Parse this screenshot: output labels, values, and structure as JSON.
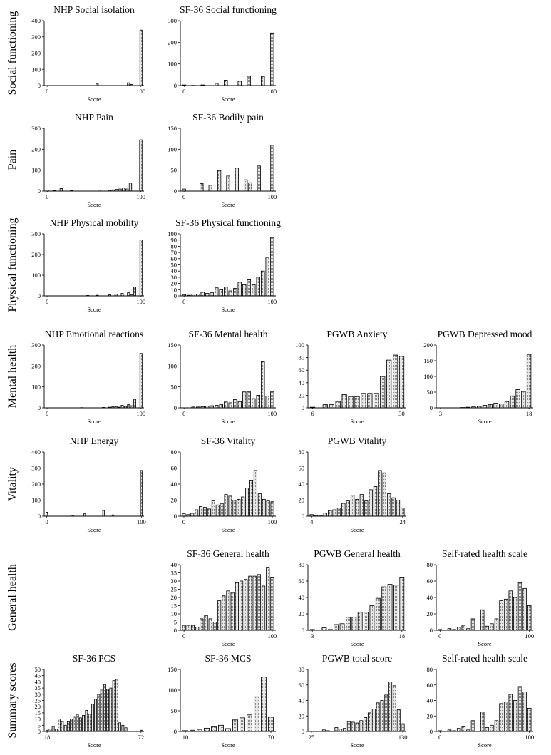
{
  "figure": {
    "row_labels": [
      "Social functioning",
      "Pain",
      "Physical functioning",
      "Mental health",
      "Vitality",
      "General health",
      "Summary scores"
    ]
  },
  "chart_data": [
    {
      "type": "bar",
      "row": 0,
      "col": 0,
      "title": "NHP Social isolation",
      "xlabel": "Score",
      "ylim": [
        0,
        400
      ],
      "yticks": [
        0,
        100,
        200,
        300,
        400
      ],
      "xlim": [
        0,
        100
      ],
      "xticks": [
        0,
        100
      ],
      "values": [
        0,
        0,
        0,
        0,
        0,
        0,
        0,
        0,
        0,
        0,
        0,
        0,
        0,
        0,
        0,
        0,
        10,
        0,
        0,
        0,
        0,
        0,
        0,
        0,
        0,
        0,
        17,
        7,
        0,
        0,
        342
      ]
    },
    {
      "type": "bar",
      "row": 0,
      "col": 1,
      "title": "SF-36 Social functioning",
      "xlabel": "Score",
      "ylim": [
        0,
        300
      ],
      "yticks": [
        0,
        100,
        200,
        300
      ],
      "xlim": [
        0,
        100
      ],
      "xticks": [
        0,
        100
      ],
      "values": [
        3,
        0,
        1,
        0,
        3,
        0,
        0,
        10,
        0,
        25,
        0,
        0,
        20,
        0,
        43,
        0,
        0,
        42,
        0,
        243
      ]
    },
    {
      "type": "bar",
      "row": 1,
      "col": 0,
      "title": "NHP Pain",
      "xlabel": "Score",
      "ylim": [
        0,
        300
      ],
      "yticks": [
        0,
        100,
        200,
        300
      ],
      "xlim": [
        0,
        100
      ],
      "xticks": [
        0,
        100
      ],
      "values": [
        5,
        0,
        3,
        0,
        12,
        0,
        0,
        2,
        0,
        0,
        0,
        0,
        0,
        0,
        0,
        5,
        0,
        0,
        4,
        6,
        8,
        10,
        15,
        10,
        38,
        0,
        0,
        245
      ]
    },
    {
      "type": "bar",
      "row": 1,
      "col": 1,
      "title": "SF-36 Bodily pain",
      "xlabel": "Score",
      "ylim": [
        0,
        150
      ],
      "yticks": [
        0,
        50,
        100,
        150
      ],
      "xlim": [
        0,
        100
      ],
      "xticks": [
        0,
        100
      ],
      "values": [
        5,
        0,
        0,
        0,
        18,
        0,
        14,
        0,
        49,
        0,
        36,
        0,
        55,
        0,
        27,
        20,
        0,
        60,
        0,
        0,
        110
      ]
    },
    {
      "type": "bar",
      "row": 2,
      "col": 0,
      "title": "NHP Physical mobility",
      "xlabel": "Score",
      "ylim": [
        0,
        300
      ],
      "yticks": [
        0,
        100,
        200,
        300
      ],
      "xlim": [
        0,
        100
      ],
      "xticks": [
        0,
        100
      ],
      "values": [
        0,
        0,
        0,
        0,
        0,
        0,
        0,
        0,
        0,
        0,
        0,
        0,
        0,
        2,
        0,
        0,
        3,
        0,
        0,
        0,
        5,
        0,
        8,
        0,
        12,
        0,
        15,
        6,
        42,
        0,
        270
      ]
    },
    {
      "type": "bar",
      "row": 2,
      "col": 1,
      "title": "SF-36 Physical functioning",
      "xlabel": "Score",
      "ylim": [
        0,
        100
      ],
      "yticks": [
        0,
        10,
        20,
        30,
        40,
        50,
        60,
        70,
        80,
        90,
        100
      ],
      "xlim": [
        0,
        100
      ],
      "xticks": [
        0,
        100
      ],
      "values": [
        2,
        1,
        3,
        3,
        6,
        4,
        5,
        13,
        10,
        14,
        8,
        12,
        22,
        18,
        26,
        18,
        30,
        40,
        62,
        94
      ]
    },
    {
      "type": "bar",
      "row": 3,
      "col": 0,
      "title": "NHP Emotional reactions",
      "xlabel": "Score",
      "ylim": [
        0,
        300
      ],
      "yticks": [
        0,
        100,
        200,
        300
      ],
      "xlim": [
        0,
        100
      ],
      "xticks": [
        0,
        100
      ],
      "values": [
        0,
        0,
        0,
        0,
        0,
        0,
        0,
        0,
        0,
        0,
        0,
        1,
        0,
        0,
        0,
        0,
        0,
        0,
        2,
        0,
        3,
        5,
        6,
        3,
        12,
        8,
        15,
        10,
        42,
        0,
        260
      ]
    },
    {
      "type": "bar",
      "row": 3,
      "col": 1,
      "title": "SF-36 Mental health",
      "xlabel": "Score",
      "ylim": [
        0,
        150
      ],
      "yticks": [
        0,
        50,
        100,
        150
      ],
      "xlim": [
        0,
        100
      ],
      "xticks": [
        0,
        100
      ],
      "values": [
        0,
        0,
        2,
        2,
        3,
        4,
        5,
        6,
        8,
        14,
        12,
        20,
        15,
        38,
        38,
        22,
        30,
        110,
        28,
        38
      ]
    },
    {
      "type": "bar",
      "row": 3,
      "col": 2,
      "title": "PGWB Anxiety",
      "xlabel": "Score",
      "ylim": [
        0,
        100
      ],
      "yticks": [
        0,
        20,
        40,
        60,
        80,
        100
      ],
      "xlim": [
        6,
        30
      ],
      "xticks": [
        6,
        30
      ],
      "values": [
        1,
        0,
        5,
        5,
        10,
        21,
        18,
        18,
        23,
        23,
        23,
        50,
        76,
        84,
        82
      ]
    },
    {
      "type": "bar",
      "row": 3,
      "col": 3,
      "title": "PGWB Depressed mood",
      "xlabel": "Score",
      "ylim": [
        0,
        200
      ],
      "yticks": [
        0,
        50,
        100,
        150,
        200
      ],
      "xlim": [
        3,
        18
      ],
      "xticks": [
        3,
        18
      ],
      "values": [
        0,
        0,
        0,
        0,
        1,
        2,
        3,
        5,
        8,
        10,
        15,
        12,
        20,
        38,
        58,
        52,
        170
      ]
    },
    {
      "type": "bar",
      "row": 4,
      "col": 0,
      "title": "NHP Energy",
      "xlabel": "Score",
      "ylim": [
        0,
        400
      ],
      "yticks": [
        0,
        100,
        200,
        300,
        400
      ],
      "xlim": [
        0,
        100
      ],
      "xticks": [
        0,
        100
      ],
      "values": [
        25,
        0,
        0,
        0,
        0,
        0,
        0,
        0,
        0,
        0,
        0,
        5,
        0,
        0,
        0,
        0,
        15,
        0,
        0,
        0,
        0,
        0,
        0,
        0,
        35,
        0,
        0,
        0,
        8,
        0,
        0,
        0,
        0,
        0,
        0,
        0,
        0,
        0,
        0,
        0,
        285
      ]
    },
    {
      "type": "bar",
      "row": 4,
      "col": 1,
      "title": "SF-36 Vitality",
      "xlabel": "Score",
      "ylim": [
        0,
        80
      ],
      "yticks": [
        0,
        20,
        40,
        60,
        80
      ],
      "xlim": [
        0,
        100
      ],
      "xticks": [
        0,
        100
      ],
      "values": [
        3,
        2,
        4,
        8,
        12,
        11,
        9,
        19,
        14,
        16,
        27,
        25,
        20,
        21,
        24,
        35,
        45,
        57,
        28,
        21,
        19,
        18
      ]
    },
    {
      "type": "bar",
      "row": 4,
      "col": 2,
      "title": "PGWB Vitality",
      "xlabel": "Score",
      "ylim": [
        0,
        80
      ],
      "yticks": [
        0,
        20,
        40,
        60,
        80
      ],
      "xlim": [
        4,
        24
      ],
      "xticks": [
        4,
        24
      ],
      "values": [
        2,
        1,
        1,
        4,
        7,
        8,
        10,
        16,
        19,
        26,
        21,
        27,
        19,
        33,
        37,
        57,
        54,
        28,
        23,
        20,
        10
      ]
    },
    {
      "type": "bar",
      "row": 5,
      "col": 1,
      "title": "SF-36 General health",
      "xlabel": "Score",
      "ylim": [
        0,
        40
      ],
      "yticks": [
        0,
        5,
        10,
        15,
        20,
        25,
        30,
        35,
        40
      ],
      "xlim": [
        0,
        100
      ],
      "xticks": [
        0,
        100
      ],
      "values": [
        3,
        3,
        3,
        2,
        7,
        9,
        7,
        5,
        18,
        21,
        24,
        23,
        29,
        30,
        31,
        33,
        33,
        34,
        27,
        38,
        32
      ]
    },
    {
      "type": "bar",
      "row": 5,
      "col": 2,
      "title": "PGWB General health",
      "xlabel": "Score",
      "ylim": [
        0,
        80
      ],
      "yticks": [
        0,
        20,
        40,
        60,
        80
      ],
      "xlim": [
        3,
        18
      ],
      "xticks": [
        3,
        18
      ],
      "values": [
        1,
        0,
        3,
        1,
        7,
        8,
        16,
        16,
        22,
        22,
        30,
        39,
        53,
        56,
        55,
        64
      ]
    },
    {
      "type": "bar",
      "row": 5,
      "col": 3,
      "title": "Self-rated health scale",
      "xlabel": "Score",
      "ylim": [
        0,
        80
      ],
      "yticks": [
        0,
        20,
        40,
        60,
        80
      ],
      "xlim": [
        0,
        100
      ],
      "xticks": [
        0,
        100
      ],
      "values": [
        1,
        0,
        2,
        1,
        4,
        6,
        2,
        14,
        0,
        25,
        5,
        8,
        14,
        36,
        38,
        48,
        40,
        58,
        51,
        30
      ]
    },
    {
      "type": "bar",
      "row": 6,
      "col": 0,
      "title": "SF-36 PCS",
      "xlabel": "Score",
      "ylim": [
        0,
        50
      ],
      "yticks": [
        0,
        5,
        10,
        15,
        20,
        25,
        30,
        35,
        40,
        45,
        50
      ],
      "xlim": [
        18,
        72
      ],
      "xticks": [
        18,
        72
      ],
      "values": [
        1,
        2,
        4,
        2,
        10,
        8,
        5,
        8,
        10,
        12,
        14,
        11,
        13,
        17,
        14,
        22,
        26,
        30,
        34,
        38,
        34,
        35,
        41,
        42,
        7,
        5,
        3,
        0,
        0,
        0,
        0,
        1
      ]
    },
    {
      "type": "bar",
      "row": 6,
      "col": 1,
      "title": "SF-36 MCS",
      "xlabel": "Score",
      "ylim": [
        0,
        150
      ],
      "yticks": [
        0,
        50,
        100,
        150
      ],
      "xlim": [
        10,
        70
      ],
      "xticks": [
        10,
        70
      ],
      "values": [
        2,
        3,
        5,
        8,
        11,
        15,
        7,
        28,
        33,
        40,
        84,
        132,
        35
      ]
    },
    {
      "type": "bar",
      "row": 6,
      "col": 2,
      "title": "PGWB total score",
      "xlabel": "Score",
      "ylim": [
        0,
        80
      ],
      "yticks": [
        0,
        20,
        40,
        60,
        80
      ],
      "xlim": [
        25,
        130
      ],
      "xticks": [
        25,
        130
      ],
      "values": [
        0,
        0,
        0,
        2,
        1,
        0,
        5,
        3,
        4,
        13,
        12,
        11,
        14,
        18,
        24,
        29,
        37,
        40,
        47,
        64,
        59,
        28,
        10
      ]
    },
    {
      "type": "bar",
      "row": 6,
      "col": 3,
      "title": "Self-rated health scale",
      "xlabel": "Score",
      "ylim": [
        0,
        80
      ],
      "yticks": [
        0,
        20,
        40,
        60,
        80
      ],
      "xlim": [
        0,
        100
      ],
      "xticks": [
        0,
        100
      ],
      "values": [
        1,
        0,
        2,
        1,
        4,
        6,
        2,
        14,
        0,
        25,
        5,
        8,
        14,
        36,
        38,
        48,
        40,
        58,
        51,
        30
      ]
    }
  ]
}
